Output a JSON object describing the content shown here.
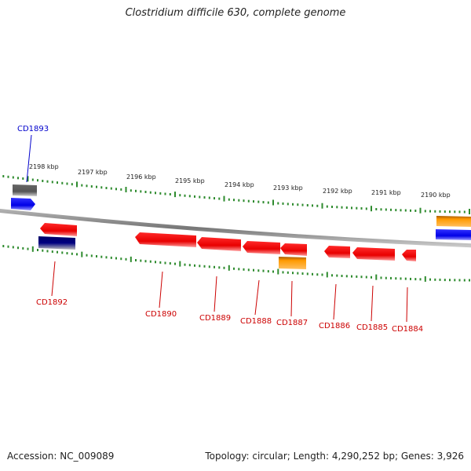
{
  "title": "Clostridium difficile 630, complete genome",
  "footer": {
    "accession": "Accession: NC_009089",
    "summary": "Topology: circular; Length: 4,290,252 bp; Genes: 3,926"
  },
  "colors": {
    "axis": "#8a8a8a",
    "tick": "#2e8b2e",
    "gene_label_red": "#cc0000",
    "gene_label_blue": "#0000cc"
  },
  "ticks": {
    "unit": "kbp",
    "labels": [
      "2198 kbp",
      "2197 kbp",
      "2196 kbp",
      "2195 kbp",
      "2194 kbp",
      "2193 kbp",
      "2192 kbp",
      "2191 kbp",
      "2190 kbp"
    ]
  },
  "genes": [
    {
      "label": "CD1893",
      "label_color": "blue",
      "strand": "+"
    },
    {
      "label": "CD1892",
      "label_color": "red",
      "strand": "-"
    },
    {
      "label": "CD1890",
      "label_color": "red",
      "strand": "-"
    },
    {
      "label": "CD1889",
      "label_color": "red",
      "strand": "-"
    },
    {
      "label": "CD1888",
      "label_color": "red",
      "strand": "-"
    },
    {
      "label": "CD1887",
      "label_color": "red",
      "strand": "-"
    },
    {
      "label": "CD1886",
      "label_color": "red",
      "strand": "-"
    },
    {
      "label": "CD1885",
      "label_color": "red",
      "strand": "-"
    },
    {
      "label": "CD1884",
      "label_color": "red",
      "strand": "-"
    }
  ],
  "feature_colors": [
    "red",
    "blue",
    "grey",
    "orange",
    "navy"
  ]
}
